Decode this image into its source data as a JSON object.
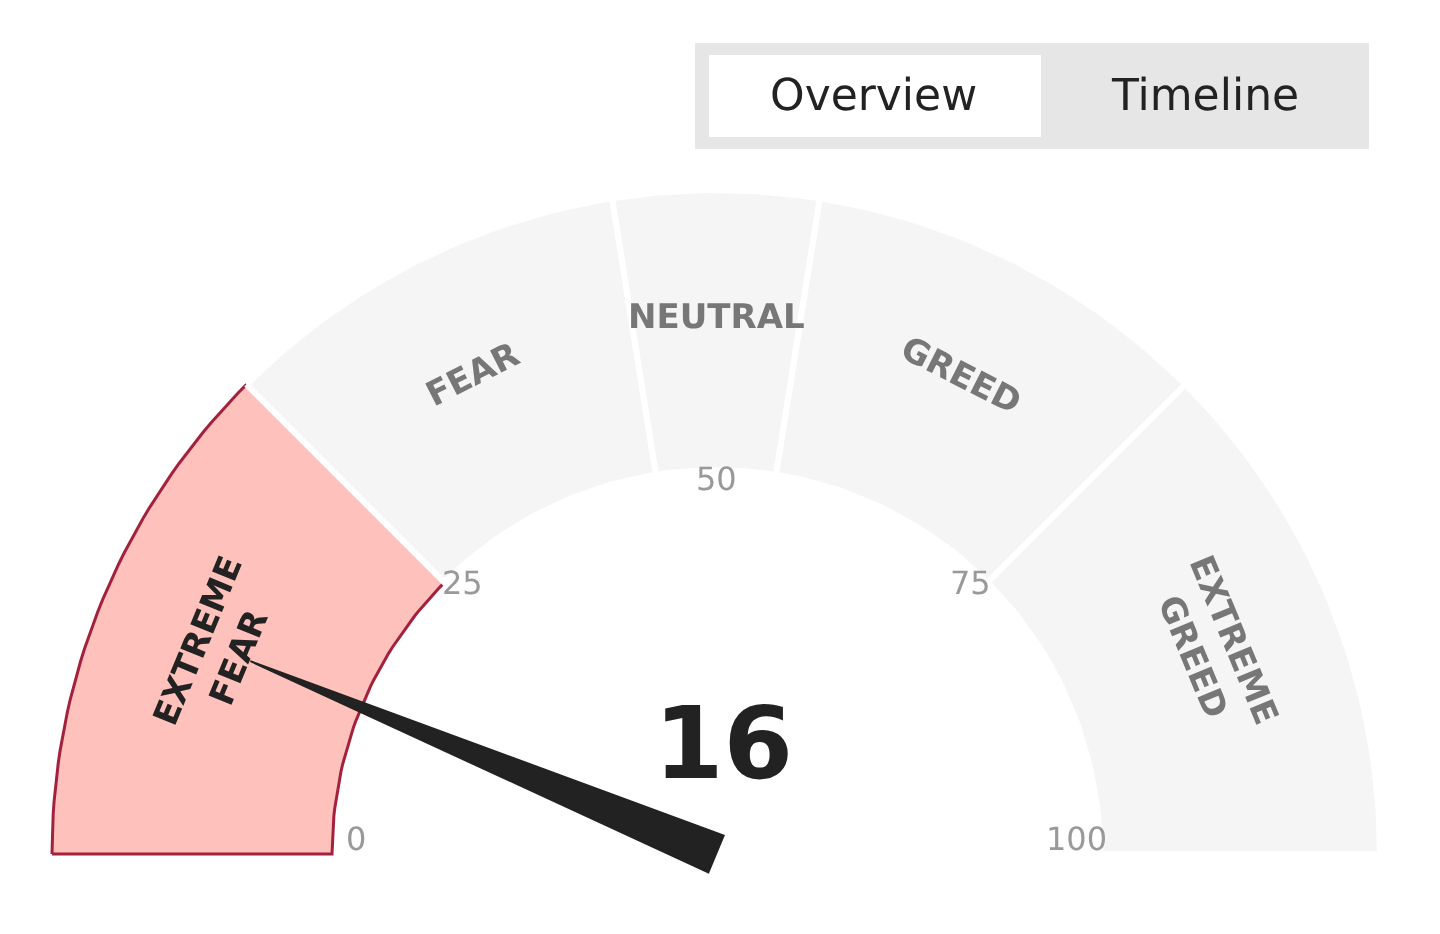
{
  "chart_data": {
    "type": "donut",
    "categories": [
      "EXTREME FEAR",
      "FEAR",
      "NEUTRAL",
      "GREED",
      "EXTREME GREED"
    ],
    "values": [
      25,
      20,
      10,
      20,
      25
    ],
    "colors": [
      "#ffc1bb",
      "#f5f5f5",
      "#f5f5f5",
      "#f5f5f5",
      "#f5f5f5"
    ],
    "needle": "EXTREME FEAR",
    "annotations": [
      "16",
      "0",
      "25",
      "50",
      "75",
      "100",
      "Overview",
      "Timeline"
    ]
  }
}
